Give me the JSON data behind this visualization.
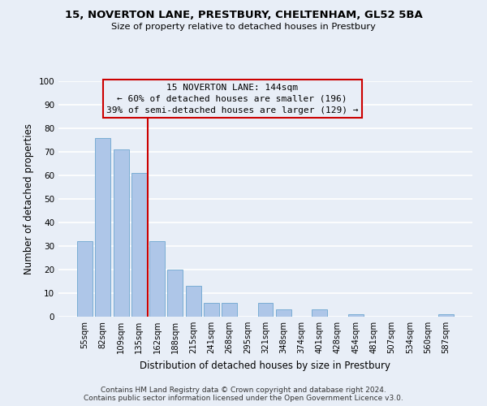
{
  "title1": "15, NOVERTON LANE, PRESTBURY, CHELTENHAM, GL52 5BA",
  "title2": "Size of property relative to detached houses in Prestbury",
  "xlabel": "Distribution of detached houses by size in Prestbury",
  "ylabel": "Number of detached properties",
  "categories": [
    "55sqm",
    "82sqm",
    "109sqm",
    "135sqm",
    "162sqm",
    "188sqm",
    "215sqm",
    "241sqm",
    "268sqm",
    "295sqm",
    "321sqm",
    "348sqm",
    "374sqm",
    "401sqm",
    "428sqm",
    "454sqm",
    "481sqm",
    "507sqm",
    "534sqm",
    "560sqm",
    "587sqm"
  ],
  "values": [
    32,
    76,
    71,
    61,
    32,
    20,
    13,
    6,
    6,
    0,
    6,
    3,
    0,
    3,
    0,
    1,
    0,
    0,
    0,
    0,
    1
  ],
  "bar_color": "#aec6e8",
  "bar_edge_color": "#7aadd4",
  "vline_x": 3.5,
  "vline_color": "#cc0000",
  "annotation_text": "15 NOVERTON LANE: 144sqm\n← 60% of detached houses are smaller (196)\n39% of semi-detached houses are larger (129) →",
  "annotation_box_color": "#cc0000",
  "ylim": [
    0,
    100
  ],
  "yticks": [
    0,
    10,
    20,
    30,
    40,
    50,
    60,
    70,
    80,
    90,
    100
  ],
  "footer1": "Contains HM Land Registry data © Crown copyright and database right 2024.",
  "footer2": "Contains public sector information licensed under the Open Government Licence v3.0.",
  "bg_color": "#e8eef7",
  "grid_color": "#ffffff"
}
